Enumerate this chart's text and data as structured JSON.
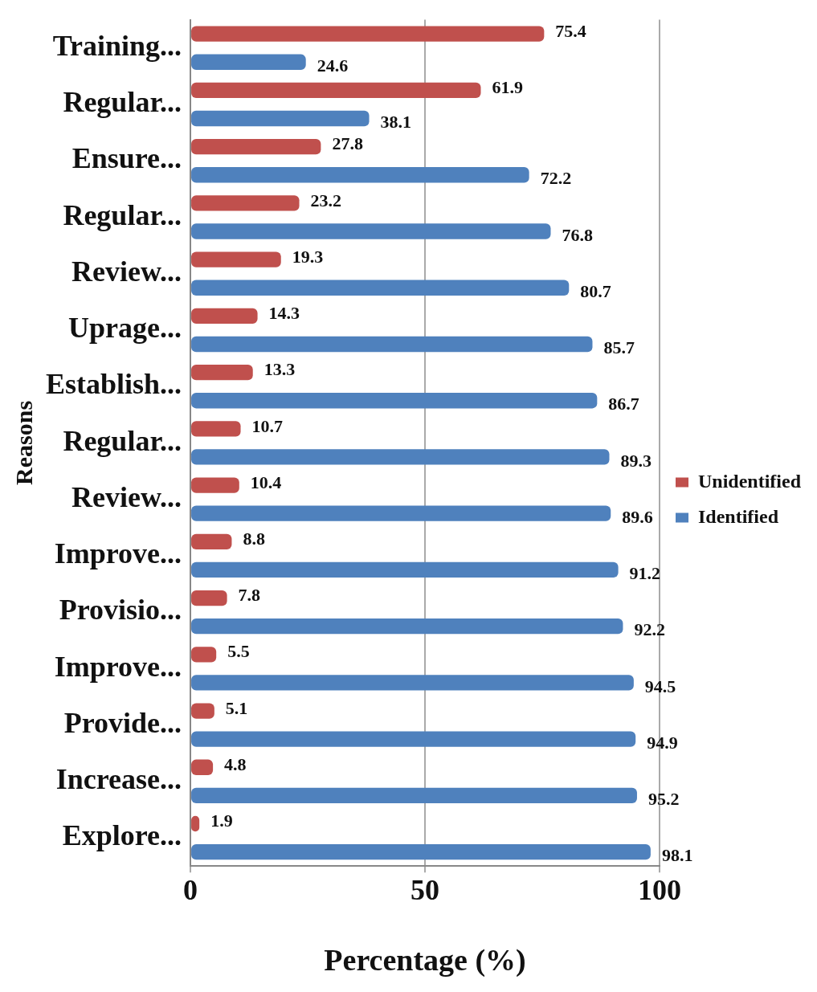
{
  "chart_data": {
    "type": "bar",
    "orientation": "horizontal",
    "ylabel": "Reasons",
    "xlabel": "Percentage (%)",
    "categories": [
      "Training...",
      "Regular...",
      "Ensure...",
      "Regular...",
      "Review...",
      "Uprage...",
      "Establish...",
      "Regular...",
      "Review...",
      "Improve...",
      "Provisio...",
      "Improve...",
      "Provide...",
      "Increase...",
      "Explore..."
    ],
    "series": [
      {
        "name": "Unidentified",
        "color": "#c0504d",
        "values": [
          75.4,
          61.9,
          27.8,
          23.2,
          19.3,
          14.3,
          13.3,
          10.7,
          10.4,
          8.8,
          7.8,
          5.5,
          5.1,
          4.8,
          1.9
        ]
      },
      {
        "name": "Identified",
        "color": "#4f81bd",
        "values": [
          24.6,
          38.1,
          72.2,
          76.8,
          80.7,
          85.7,
          86.7,
          89.3,
          89.6,
          91.2,
          92.2,
          94.5,
          94.9,
          95.2,
          98.1
        ]
      }
    ],
    "xlim": [
      0,
      100
    ],
    "xticks": [
      0,
      50,
      100
    ],
    "grid": "x",
    "legend": "right",
    "data_labels": true
  }
}
